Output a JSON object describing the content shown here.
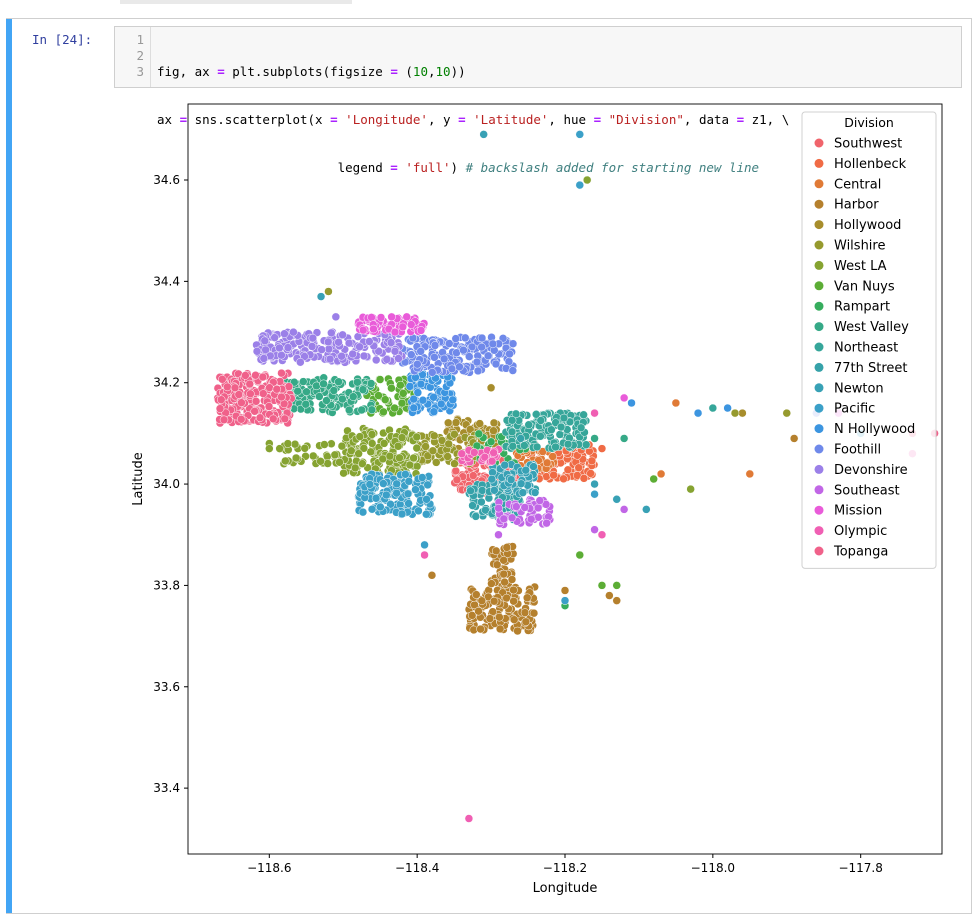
{
  "cell": {
    "prompt": "In [24]:",
    "line_numbers": [
      "1",
      "2",
      "3"
    ],
    "code_lines": [
      [
        {
          "t": "fig, ax "
        },
        {
          "t": "=",
          "c": "op"
        },
        {
          "t": " plt.subplots(figsize "
        },
        {
          "t": "=",
          "c": "op"
        },
        {
          "t": " ("
        },
        {
          "t": "10",
          "c": "num"
        },
        {
          "t": ","
        },
        {
          "t": "10",
          "c": "num"
        },
        {
          "t": "))"
        }
      ],
      [
        {
          "t": "ax "
        },
        {
          "t": "=",
          "c": "op"
        },
        {
          "t": " sns.scatterplot(x "
        },
        {
          "t": "=",
          "c": "op"
        },
        {
          "t": " "
        },
        {
          "t": "'Longitude'",
          "c": "str"
        },
        {
          "t": ", y "
        },
        {
          "t": "=",
          "c": "op"
        },
        {
          "t": " "
        },
        {
          "t": "'Latitude'",
          "c": "str"
        },
        {
          "t": ", hue "
        },
        {
          "t": "=",
          "c": "op"
        },
        {
          "t": " "
        },
        {
          "t": "\"Division\"",
          "c": "str"
        },
        {
          "t": ", data "
        },
        {
          "t": "=",
          "c": "op"
        },
        {
          "t": " z1, \\"
        }
      ],
      [
        {
          "t": "                        legend "
        },
        {
          "t": "=",
          "c": "op"
        },
        {
          "t": " "
        },
        {
          "t": "'full'",
          "c": "str"
        },
        {
          "t": ") "
        },
        {
          "t": "# backslash added for starting new line",
          "c": "com"
        }
      ]
    ]
  },
  "chart_data": {
    "type": "scatter",
    "title": "",
    "xlabel": "Longitude",
    "ylabel": "Latitude",
    "xlim": [
      -118.71,
      -117.69
    ],
    "ylim": [
      33.27,
      34.75
    ],
    "xticks": [
      -118.6,
      -118.4,
      -118.2,
      -118.0,
      -117.8
    ],
    "xtick_labels": [
      "−118.6",
      "−118.4",
      "−118.2",
      "−118.0",
      "−117.8"
    ],
    "yticks": [
      33.4,
      33.6,
      33.8,
      34.0,
      34.2,
      34.4,
      34.6
    ],
    "ytick_labels": [
      "33.4",
      "33.6",
      "33.8",
      "34.0",
      "34.2",
      "34.4",
      "34.6"
    ],
    "grid": false,
    "legend_title": "Division",
    "legend_position": "upper-right",
    "series": [
      {
        "name": "Southwest",
        "color": "#f0646b",
        "clusters": [
          {
            "x": [
              -118.35,
              -118.26
            ],
            "y": [
              33.98,
              34.05
            ],
            "n": 130
          }
        ],
        "outliers": [
          [
            -118.28,
            34.01
          ]
        ]
      },
      {
        "name": "Hollenbeck",
        "color": "#f06b45",
        "clusters": [
          {
            "x": [
              -118.25,
              -118.16
            ],
            "y": [
              34.01,
              34.08
            ],
            "n": 120
          }
        ],
        "outliers": [
          [
            -118.19,
            34.07
          ],
          [
            -118.15,
            34.07
          ]
        ]
      },
      {
        "name": "Central",
        "color": "#e07a36",
        "clusters": [
          {
            "x": [
              -118.27,
              -118.21
            ],
            "y": [
              34.03,
              34.07
            ],
            "n": 30
          }
        ],
        "outliers": [
          [
            -118.07,
            34.02
          ],
          [
            -117.95,
            34.02
          ],
          [
            -118.05,
            34.16
          ]
        ]
      },
      {
        "name": "Harbor",
        "color": "#b5802d",
        "clusters": [
          {
            "x": [
              -118.33,
              -118.24
            ],
            "y": [
              33.71,
              33.8
            ],
            "n": 140
          },
          {
            "x": [
              -118.3,
              -118.27
            ],
            "y": [
              33.8,
              33.88
            ],
            "n": 40
          }
        ],
        "outliers": [
          [
            -118.13,
            33.77
          ],
          [
            -118.14,
            33.78
          ],
          [
            -118.2,
            33.79
          ],
          [
            -118.38,
            33.82
          ],
          [
            -117.89,
            34.09
          ]
        ]
      },
      {
        "name": "Hollywood",
        "color": "#a78d2c",
        "clusters": [
          {
            "x": [
              -118.36,
              -118.29
            ],
            "y": [
              34.07,
              34.13
            ],
            "n": 60
          }
        ],
        "outliers": [
          [
            -117.96,
            34.14
          ],
          [
            -118.3,
            34.19
          ]
        ]
      },
      {
        "name": "Wilshire",
        "color": "#969a2e",
        "clusters": [
          {
            "x": [
              -118.4,
              -118.32
            ],
            "y": [
              34.04,
              34.1
            ],
            "n": 80
          }
        ],
        "outliers": [
          [
            -118.52,
            34.38
          ],
          [
            -117.97,
            34.14
          ],
          [
            -117.9,
            34.14
          ]
        ]
      },
      {
        "name": "West LA",
        "color": "#86a331",
        "clusters": [
          {
            "x": [
              -118.5,
              -118.4
            ],
            "y": [
              34.02,
              34.11
            ],
            "n": 160
          },
          {
            "x": [
              -118.59,
              -118.5
            ],
            "y": [
              34.04,
              34.08
            ],
            "n": 40
          }
        ],
        "outliers": [
          [
            -118.6,
            34.08
          ],
          [
            -118.6,
            34.07
          ],
          [
            -118.17,
            34.6
          ],
          [
            -118.03,
            33.99
          ]
        ]
      },
      {
        "name": "Van Nuys",
        "color": "#5cad35",
        "clusters": [
          {
            "x": [
              -118.47,
              -118.4
            ],
            "y": [
              34.14,
              34.21
            ],
            "n": 60
          }
        ],
        "outliers": [
          [
            -118.15,
            33.8
          ],
          [
            -118.13,
            33.8
          ],
          [
            -118.18,
            33.86
          ],
          [
            -118.08,
            34.01
          ]
        ]
      },
      {
        "name": "Rampart",
        "color": "#36ad5d",
        "clusters": [
          {
            "x": [
              -118.32,
              -118.25
            ],
            "y": [
              34.04,
              34.1
            ],
            "n": 30
          }
        ],
        "outliers": [
          [
            -118.2,
            33.76
          ]
        ]
      },
      {
        "name": "West Valley",
        "color": "#36a987",
        "clusters": [
          {
            "x": [
              -118.58,
              -118.46
            ],
            "y": [
              34.14,
              34.21
            ],
            "n": 130
          }
        ],
        "outliers": [
          [
            -118.16,
            34.09
          ],
          [
            -118.12,
            34.09
          ]
        ]
      },
      {
        "name": "Northeast",
        "color": "#36a69a",
        "clusters": [
          {
            "x": [
              -118.28,
              -118.17
            ],
            "y": [
              34.07,
              34.14
            ],
            "n": 140
          }
        ],
        "outliers": [
          [
            -118.0,
            34.15
          ]
        ]
      },
      {
        "name": "77th Street",
        "color": "#36a2a9",
        "clusters": [
          {
            "x": [
              -118.33,
              -118.26
            ],
            "y": [
              33.93,
              34.0
            ],
            "n": 110
          }
        ],
        "outliers": [
          [
            -118.24,
            33.99
          ],
          [
            -118.27,
            33.93
          ],
          [
            -118.26,
            34.09
          ]
        ]
      },
      {
        "name": "Newton",
        "color": "#38a1b5",
        "clusters": [
          {
            "x": [
              -118.3,
              -118.24
            ],
            "y": [
              33.98,
              34.04
            ],
            "n": 60
          }
        ],
        "outliers": [
          [
            -118.53,
            34.37
          ],
          [
            -118.31,
            34.69
          ],
          [
            -118.09,
            33.95
          ],
          [
            -118.13,
            33.97
          ],
          [
            -118.16,
            34.0
          ]
        ]
      },
      {
        "name": "Pacific",
        "color": "#3ba0c8",
        "clusters": [
          {
            "x": [
              -118.48,
              -118.38
            ],
            "y": [
              33.94,
              34.02
            ],
            "n": 150
          }
        ],
        "outliers": [
          [
            -118.18,
            34.69
          ],
          [
            -118.18,
            34.59
          ],
          [
            -118.39,
            33.88
          ],
          [
            -118.2,
            33.77
          ],
          [
            -118.16,
            33.98
          ],
          [
            -117.8,
            34.1
          ]
        ]
      },
      {
        "name": "N Hollywood",
        "color": "#3c95e0",
        "clusters": [
          {
            "x": [
              -118.41,
              -118.35
            ],
            "y": [
              34.14,
              34.22
            ],
            "n": 90
          }
        ],
        "outliers": [
          [
            -118.11,
            34.16
          ],
          [
            -117.98,
            34.15
          ],
          [
            -118.02,
            34.14
          ]
        ]
      },
      {
        "name": "Foothill",
        "color": "#6f89ea",
        "clusters": [
          {
            "x": [
              -118.42,
              -118.27
            ],
            "y": [
              34.22,
              34.29
            ],
            "n": 170
          }
        ],
        "outliers": [
          [
            -117.86,
            34.14
          ]
        ]
      },
      {
        "name": "Devonshire",
        "color": "#9b80e8",
        "clusters": [
          {
            "x": [
              -118.62,
              -118.42
            ],
            "y": [
              34.24,
              34.3
            ],
            "n": 200
          }
        ],
        "outliers": [
          [
            -118.51,
            34.33
          ]
        ]
      },
      {
        "name": "Southeast",
        "color": "#c166e6",
        "clusters": [
          {
            "x": [
              -118.29,
              -118.22
            ],
            "y": [
              33.92,
              33.97
            ],
            "n": 60
          }
        ],
        "outliers": [
          [
            -118.29,
            33.9
          ],
          [
            -118.16,
            33.91
          ],
          [
            -118.12,
            33.95
          ]
        ]
      },
      {
        "name": "Mission",
        "color": "#e95bd9",
        "clusters": [
          {
            "x": [
              -118.48,
              -118.39
            ],
            "y": [
              34.3,
              34.33
            ],
            "n": 70
          }
        ],
        "outliers": [
          [
            -118.43,
            34.3
          ],
          [
            -118.12,
            34.17
          ],
          [
            -117.83,
            34.14
          ]
        ]
      },
      {
        "name": "Olympic",
        "color": "#f05fb3",
        "clusters": [
          {
            "x": [
              -118.34,
              -118.29
            ],
            "y": [
              34.04,
              34.07
            ],
            "n": 30
          }
        ],
        "outliers": [
          [
            -118.33,
            33.34
          ],
          [
            -118.39,
            33.86
          ],
          [
            -118.15,
            33.9
          ],
          [
            -118.16,
            34.14
          ],
          [
            -117.73,
            34.06
          ]
        ]
      },
      {
        "name": "Topanga",
        "color": "#f0618a",
        "clusters": [
          {
            "x": [
              -118.67,
              -118.57
            ],
            "y": [
              34.12,
              34.22
            ],
            "n": 220
          }
        ],
        "outliers": [
          [
            -117.7,
            34.1
          ],
          [
            -117.73,
            34.1
          ]
        ]
      }
    ]
  }
}
